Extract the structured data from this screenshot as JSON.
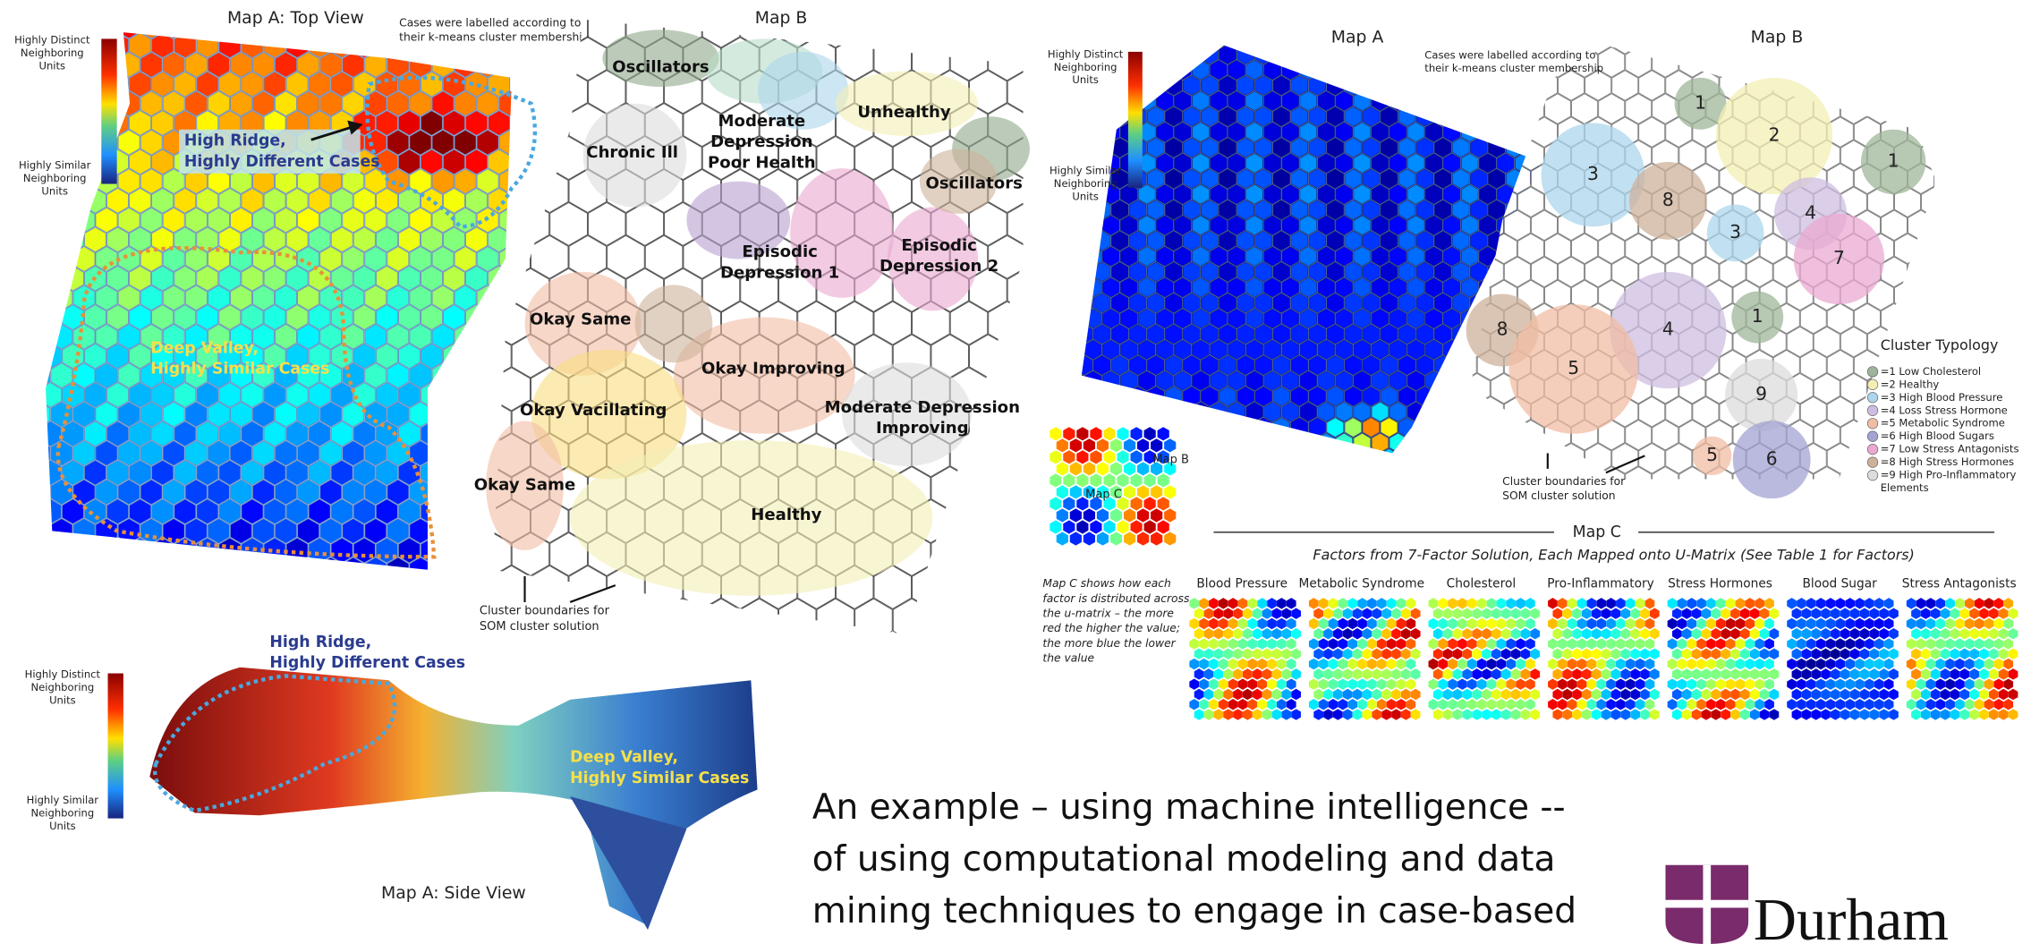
{
  "left_figure": {
    "map_a_title": "Map A: Top View",
    "legend_high": [
      "Highly Distinct",
      "Neighboring",
      "Units"
    ],
    "legend_low": [
      "Highly Similar",
      "Neighboring",
      "Units"
    ],
    "note": [
      "Cases were labelled according to",
      "their k-means cluster membership"
    ],
    "high_ridge": [
      "High Ridge,",
      "Highly Different Cases"
    ],
    "deep_valley": [
      "Deep Valley,",
      "Highly Similar Cases"
    ],
    "map_b_title": "Map B",
    "clusters": [
      [
        "Oscillators"
      ],
      [
        "Moderate",
        "Depression",
        "Poor Health"
      ],
      [
        "Unhealthy"
      ],
      [
        "Chronic Ill"
      ],
      [
        "Oscillators"
      ],
      [
        "Episodic",
        "Depression 1"
      ],
      [
        "Episodic",
        "Depression 2"
      ],
      [
        "Okay Same"
      ],
      [
        "Okay Improving"
      ],
      [
        "Okay Vacillating"
      ],
      [
        "Moderate Depression",
        "Improving"
      ],
      [
        "Okay Same"
      ],
      [
        "Healthy"
      ]
    ],
    "cluster_note": [
      "Cluster boundaries for",
      "SOM cluster solution"
    ]
  },
  "side_view": {
    "legend_high": [
      "Highly Distinct",
      "Neighboring",
      "Units"
    ],
    "legend_low": [
      "Highly Similar",
      "Neighboring",
      "Units"
    ],
    "high_ridge": [
      "High Ridge,",
      "Highly Different Cases"
    ],
    "deep_valley": [
      "Deep Valley,",
      "Highly Similar Cases"
    ],
    "title": "Map A: Side View"
  },
  "right_figure": {
    "map_a_title": "Map A",
    "map_b_title": "Map B",
    "legend_high": [
      "Highly Distinct",
      "Neighboring",
      "Units"
    ],
    "legend_low": [
      "Highly Similar",
      "Neighboring",
      "Units"
    ],
    "note": [
      "Cases were labelled according to",
      "their k-means cluster membership"
    ],
    "cluster_note": [
      "Cluster boundaries for",
      "SOM cluster solution"
    ],
    "inset_b": "Map B",
    "inset_c": "Map C",
    "typology_title": "Cluster Typology",
    "typology": [
      {
        "label": "=1 Low Cholesterol",
        "color": "#9fb59a"
      },
      {
        "label": "=2 Healthy",
        "color": "#f3efb4"
      },
      {
        "label": "=3 High Blood Pressure",
        "color": "#acd5ec"
      },
      {
        "label": "=4 Loss Stress Hormone",
        "color": "#cdbde0"
      },
      {
        "label": "=5 Metabolic Syndrome",
        "color": "#f1bca4"
      },
      {
        "label": "=6 High Blood Sugars",
        "color": "#a3a3d4"
      },
      {
        "label": "=7 Low Stress Antagonists",
        "color": "#eaa9d1"
      },
      {
        "label": "=8 High Stress Hormones",
        "color": "#cdb29b"
      },
      {
        "label": "=9 High Pro-Inflammatory",
        "color": "#dcdcdc"
      },
      {
        "label": "Elements",
        "color": null
      }
    ],
    "cluster_numbers": [
      "1",
      "2",
      "1",
      "3",
      "8",
      "3",
      "4",
      "7",
      "8",
      "4",
      "1",
      "5",
      "9",
      "5",
      "6"
    ],
    "map_c_title": "Map C",
    "map_c_subtitle": "Factors from  7-Factor Solution, Each Mapped onto U-Matrix (See Table 1 for Factors)",
    "map_c_note": [
      "Map C shows how each",
      "factor is distributed across",
      "the u-matrix – the more",
      "red the higher the value;",
      "the more blue the lower",
      "the value"
    ],
    "factors": [
      "Blood Pressure",
      "Metabolic Syndrome",
      "Cholesterol",
      "Pro-Inflammatory",
      "Stress Hormones",
      "Blood Sugar",
      "Stress Antagonists"
    ]
  },
  "caption": [
    "An example – using machine intelligence --",
    "of using computational modeling and data",
    "mining techniques to engage in case-based"
  ],
  "logo": "Durham"
}
